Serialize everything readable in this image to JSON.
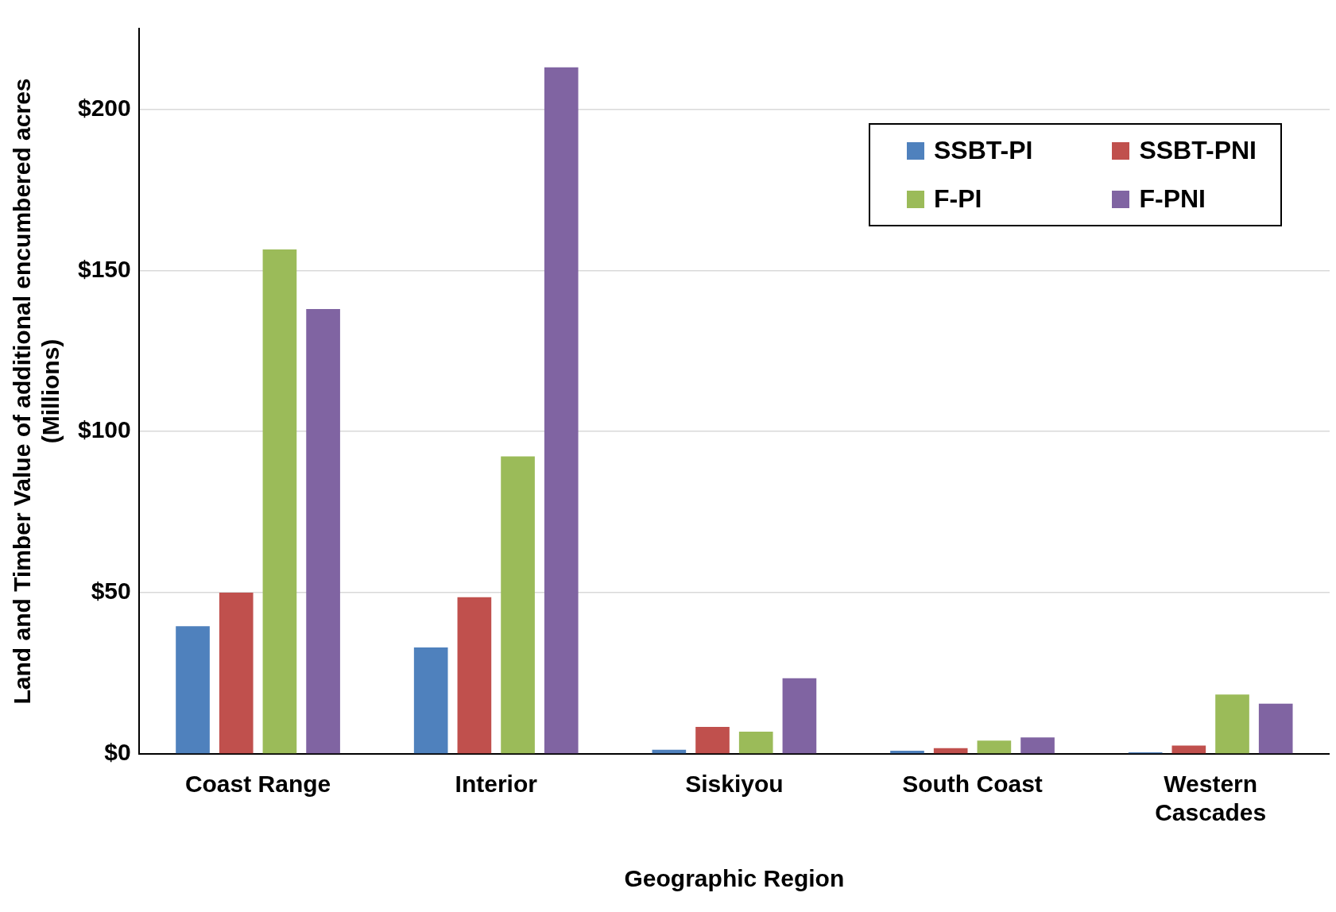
{
  "chart_data": {
    "type": "bar",
    "xlabel": "Geographic Region",
    "ylabel": "Land and Timber Value of additional encumbered acres (Millions)",
    "categories": [
      "Coast Range",
      "Interior",
      "Siskiyou",
      "South Coast",
      "Western Cascades"
    ],
    "series": [
      {
        "name": "SSBT-PI",
        "color": "#4f81bd",
        "values": [
          39.6,
          33,
          1.3,
          1,
          0.5
        ]
      },
      {
        "name": "SSBT-PNI",
        "color": "#c0504d",
        "values": [
          50,
          48.6,
          8.4,
          1.8,
          2.6
        ]
      },
      {
        "name": "F-PI",
        "color": "#9bbb59",
        "values": [
          156.5,
          92.3,
          6.9,
          4.1,
          18.4
        ]
      },
      {
        "name": "F-PNI",
        "color": "#8064a2",
        "values": [
          138,
          213,
          23.5,
          5.1,
          15.6
        ]
      }
    ],
    "ylim": [
      0,
      225
    ],
    "yticks": [
      {
        "value": 0,
        "label": "$0"
      },
      {
        "value": 50,
        "label": "$50"
      },
      {
        "value": 100,
        "label": "$100"
      },
      {
        "value": 150,
        "label": "$150"
      },
      {
        "value": 200,
        "label": "$200"
      }
    ],
    "grid": "y",
    "legend": "top right"
  }
}
